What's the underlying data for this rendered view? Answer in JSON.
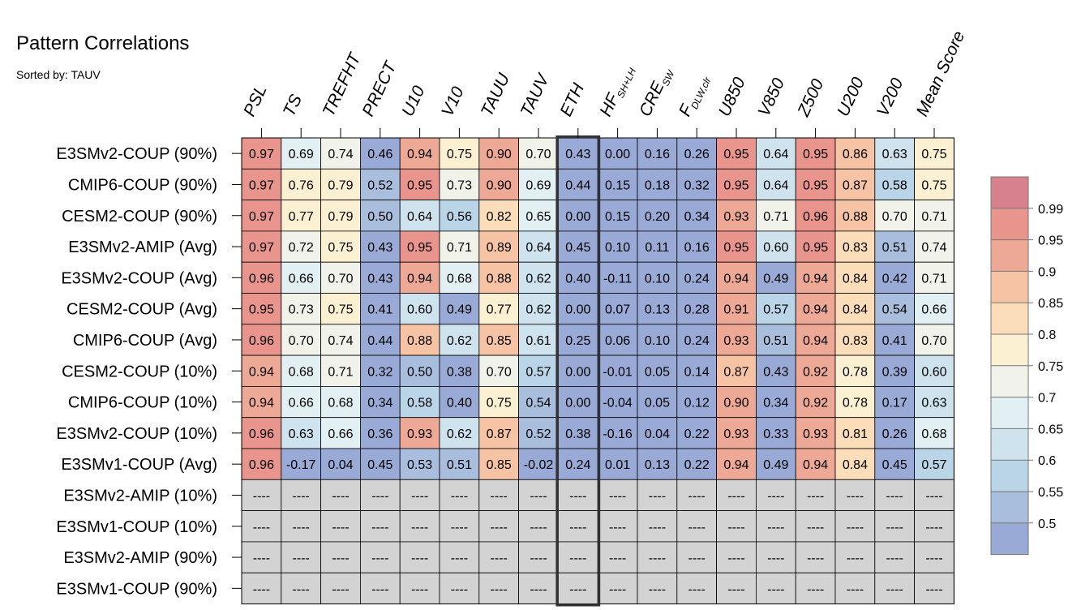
{
  "chart_data": {
    "type": "heatmap",
    "title": "Pattern Correlations",
    "subtitle": "Sorted by: TAUV",
    "columns": [
      {
        "label": "PSL"
      },
      {
        "label": "TS"
      },
      {
        "label": "TREFHT"
      },
      {
        "label": "PRECT"
      },
      {
        "label": "U10"
      },
      {
        "label": "V10"
      },
      {
        "label": "TAUU"
      },
      {
        "label": "TAUV"
      },
      {
        "label": "ETH"
      },
      {
        "label": "HF",
        "sub": "SH+LH"
      },
      {
        "label": "CRE",
        "sub": "SW"
      },
      {
        "label": "F",
        "sub": "DLW,clr"
      },
      {
        "label": "U850"
      },
      {
        "label": "V850"
      },
      {
        "label": "Z500"
      },
      {
        "label": "U200"
      },
      {
        "label": "V200"
      },
      {
        "label": "Mean Score"
      }
    ],
    "rows": [
      "E3SMv2-COUP (90%)",
      "CMIP6-COUP (90%)",
      "CESM2-COUP (90%)",
      "E3SMv2-AMIP (Avg)",
      "E3SMv2-COUP (Avg)",
      "CESM2-COUP (Avg)",
      "CMIP6-COUP (Avg)",
      "CESM2-COUP (10%)",
      "CMIP6-COUP (10%)",
      "E3SMv2-COUP (10%)",
      "E3SMv1-COUP (Avg)",
      "E3SMv2-AMIP (10%)",
      "E3SMv1-COUP (10%)",
      "E3SMv2-AMIP (90%)",
      "E3SMv1-COUP (90%)"
    ],
    "values": [
      [
        0.97,
        0.69,
        0.74,
        0.46,
        0.94,
        0.75,
        0.9,
        0.7,
        0.43,
        0.0,
        0.16,
        0.26,
        0.95,
        0.64,
        0.95,
        0.86,
        0.63,
        0.75
      ],
      [
        0.97,
        0.76,
        0.79,
        0.52,
        0.95,
        0.73,
        0.9,
        0.69,
        0.44,
        0.15,
        0.18,
        0.32,
        0.95,
        0.64,
        0.95,
        0.87,
        0.58,
        0.75
      ],
      [
        0.97,
        0.77,
        0.79,
        0.5,
        0.64,
        0.56,
        0.82,
        0.65,
        0.0,
        0.15,
        0.2,
        0.34,
        0.93,
        0.71,
        0.96,
        0.88,
        0.7,
        0.71
      ],
      [
        0.97,
        0.72,
        0.75,
        0.43,
        0.95,
        0.71,
        0.89,
        0.64,
        0.45,
        0.1,
        0.11,
        0.16,
        0.95,
        0.6,
        0.95,
        0.83,
        0.51,
        0.74
      ],
      [
        0.96,
        0.66,
        0.7,
        0.43,
        0.94,
        0.68,
        0.88,
        0.62,
        0.4,
        -0.11,
        0.1,
        0.24,
        0.94,
        0.49,
        0.94,
        0.84,
        0.42,
        0.71
      ],
      [
        0.95,
        0.73,
        0.75,
        0.41,
        0.6,
        0.49,
        0.77,
        0.62,
        0.0,
        0.07,
        0.13,
        0.28,
        0.91,
        0.57,
        0.94,
        0.84,
        0.54,
        0.66
      ],
      [
        0.96,
        0.7,
        0.74,
        0.44,
        0.88,
        0.62,
        0.85,
        0.61,
        0.25,
        0.06,
        0.1,
        0.24,
        0.93,
        0.51,
        0.94,
        0.83,
        0.41,
        0.7
      ],
      [
        0.94,
        0.68,
        0.71,
        0.32,
        0.5,
        0.38,
        0.7,
        0.57,
        0.0,
        -0.01,
        0.05,
        0.14,
        0.87,
        0.43,
        0.92,
        0.78,
        0.39,
        0.6
      ],
      [
        0.94,
        0.66,
        0.68,
        0.34,
        0.58,
        0.4,
        0.75,
        0.54,
        0.0,
        -0.04,
        0.05,
        0.12,
        0.9,
        0.34,
        0.92,
        0.78,
        0.17,
        0.63
      ],
      [
        0.96,
        0.63,
        0.66,
        0.36,
        0.93,
        0.62,
        0.87,
        0.52,
        0.38,
        -0.16,
        0.04,
        0.22,
        0.93,
        0.33,
        0.93,
        0.81,
        0.26,
        0.68
      ],
      [
        0.96,
        -0.17,
        0.04,
        0.45,
        0.53,
        0.51,
        0.85,
        -0.02,
        0.24,
        0.01,
        0.13,
        0.22,
        0.94,
        0.49,
        0.94,
        0.84,
        0.45,
        0.57
      ],
      [
        null,
        null,
        null,
        null,
        null,
        null,
        null,
        null,
        null,
        null,
        null,
        null,
        null,
        null,
        null,
        null,
        null,
        null
      ],
      [
        null,
        null,
        null,
        null,
        null,
        null,
        null,
        null,
        null,
        null,
        null,
        null,
        null,
        null,
        null,
        null,
        null,
        null
      ],
      [
        null,
        null,
        null,
        null,
        null,
        null,
        null,
        null,
        null,
        null,
        null,
        null,
        null,
        null,
        null,
        null,
        null,
        null
      ],
      [
        null,
        null,
        null,
        null,
        null,
        null,
        null,
        null,
        null,
        null,
        null,
        null,
        null,
        null,
        null,
        null,
        null,
        null
      ]
    ],
    "missing_label": "----",
    "highlighted_column": "ETH",
    "colorbar": {
      "tick_labels": [
        "0.99",
        "0.95",
        "0.9",
        "0.85",
        "0.8",
        "0.75",
        "0.7",
        "0.65",
        "0.6",
        "0.55",
        "0.5"
      ],
      "thresholds": [
        0.5,
        0.55,
        0.6,
        0.65,
        0.7,
        0.75,
        0.8,
        0.85,
        0.9,
        0.95,
        0.99
      ],
      "colors": [
        "#9AAAD6",
        "#A9BEDD",
        "#BBD5E8",
        "#CFE3EE",
        "#E2EFF3",
        "#F1F2EA",
        "#FCF0D3",
        "#FBDDBA",
        "#F6C4A5",
        "#EEA896",
        "#E9958E",
        "#D6818D"
      ]
    },
    "missing_color": "#D3D3D3",
    "grid": true,
    "legend_position": "right"
  }
}
